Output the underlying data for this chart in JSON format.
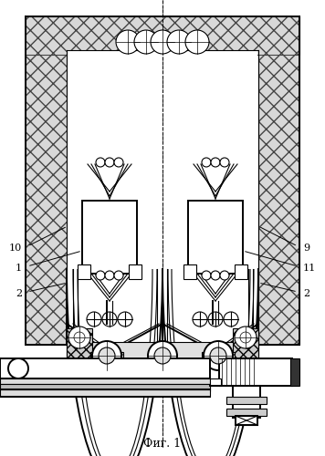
{
  "title": "Фиг. 1",
  "bg_color": "#ffffff",
  "line_color": "#000000",
  "fig_width": 3.56,
  "fig_height": 5.0,
  "dpi": 100,
  "labels_left": {
    "10": [
      0.055,
      0.595
    ],
    "1": [
      0.055,
      0.555
    ],
    "2": [
      0.055,
      0.51
    ]
  },
  "labels_right": {
    "9": [
      0.945,
      0.595
    ],
    "11": [
      0.945,
      0.555
    ],
    "2r": [
      0.945,
      0.51
    ]
  }
}
